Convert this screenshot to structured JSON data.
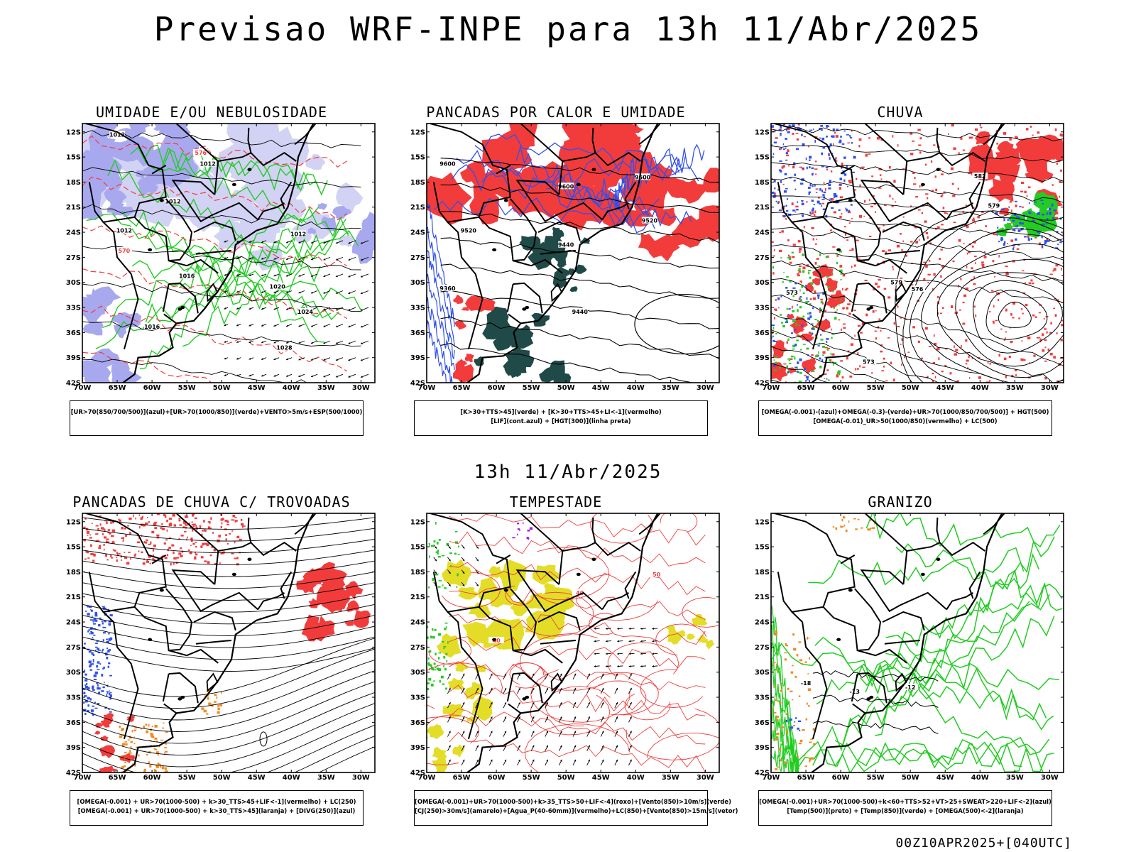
{
  "title": "Previsao WRF-INPE  para 13h 11/Abr/2025",
  "subtitle": "13h 11/Abr/2025",
  "footer": "00Z10APR2025+[040UTC]",
  "axes": {
    "lat_labels": [
      "12S",
      "15S",
      "18S",
      "21S",
      "24S",
      "27S",
      "30S",
      "33S",
      "36S",
      "39S",
      "42S"
    ],
    "lon_labels": [
      "70W",
      "65W",
      "60W",
      "55W",
      "50W",
      "45W",
      "40W",
      "35W",
      "30W"
    ]
  },
  "colors": {
    "red": "#f23c3c",
    "green": "#22cc22",
    "blue": "#3050ee",
    "lavender": "#a8a8ee",
    "lightlav": "#d2d2f4",
    "darkteal": "#1f4a48",
    "yellow": "#e3dd28",
    "orange": "#f08a20",
    "purple": "#a020f0",
    "black": "#000000"
  },
  "panels": [
    {
      "id": "umidade",
      "title": "UMIDADE E/OU NEBULOSIDADE",
      "legend": [
        "[UR>70(850/700/500)](azul)+[UR>70(1000/850)](verde)+VENTO>5m/s+ESP(500/1000)"
      ],
      "contour_labels": [
        "1012",
        "1012",
        "1012",
        "1012",
        "1012",
        "1016",
        "1016",
        "1020",
        "1024",
        "1028",
        "576",
        "570"
      ]
    },
    {
      "id": "pancadas-calor",
      "title": "PANCADAS POR CALOR E UMIDADE",
      "legend": [
        "[K>30+TTS>45](verde) + [K>30+TTS>45+LI<-1](vermelho)",
        "[LIF](cont.azul) + [HGT(300)](linha preta)"
      ],
      "contour_labels": [
        "9600",
        "9600",
        "9600",
        "9520",
        "9520",
        "9440",
        "9440",
        "9360"
      ]
    },
    {
      "id": "chuva",
      "title": "CHUVA",
      "legend": [
        "[OMEGA(-0.001)-(azul)+OMEGA(-0.3)-(verde)+UR>70(1000/850/700/500)] + HGT(500)",
        "[OMEGA(-0.01)_UR>50(1000/850)(vermelho) + LC(500)"
      ],
      "contour_labels": [
        "582",
        "579",
        "579",
        "576",
        "573",
        "573"
      ]
    },
    {
      "id": "pancadas-trovoadas",
      "title": "PANCADAS DE CHUVA C/ TROVOADAS",
      "legend": [
        "[OMEGA(-0.001) + UR>70(1000-500) + k>30_TTS>45+LIF<-1](vermelho) + LC(250)",
        "[OMEGA(-0.001) + UR>70(1000-500) + k>30_TTS>45](laranja) + [DIVG(250)](azul)"
      ],
      "contour_labels": []
    },
    {
      "id": "tempestade",
      "title": "TEMPESTADE",
      "legend": [
        "[OMEGA(-0.001)+UR>70(1000-500)+k>35_TTS>50+LIF<-4](roxo)+[Vento(850)>10m/s](verde)",
        "[CJ(250)>30m/s](amarelo)+[Agua_P(40-60mm)](vermelho)+LC(850)+[Vento(850)>15m/s](vetor)"
      ],
      "contour_labels": [
        "40",
        "40",
        "50"
      ]
    },
    {
      "id": "granizo",
      "title": "GRANIZO",
      "legend": [
        "[OMEGA(-0.001)+UR>70(1000-500)+k<60+TTS>52+VT>25+SWEAT>220+LIF<-2](azul)",
        "[Temp(500)](preto) + [Temp(850)](verde) + [OMEGA(500)<-2](laranja)"
      ],
      "contour_labels": [
        "-18",
        "-13",
        "-12"
      ]
    }
  ]
}
